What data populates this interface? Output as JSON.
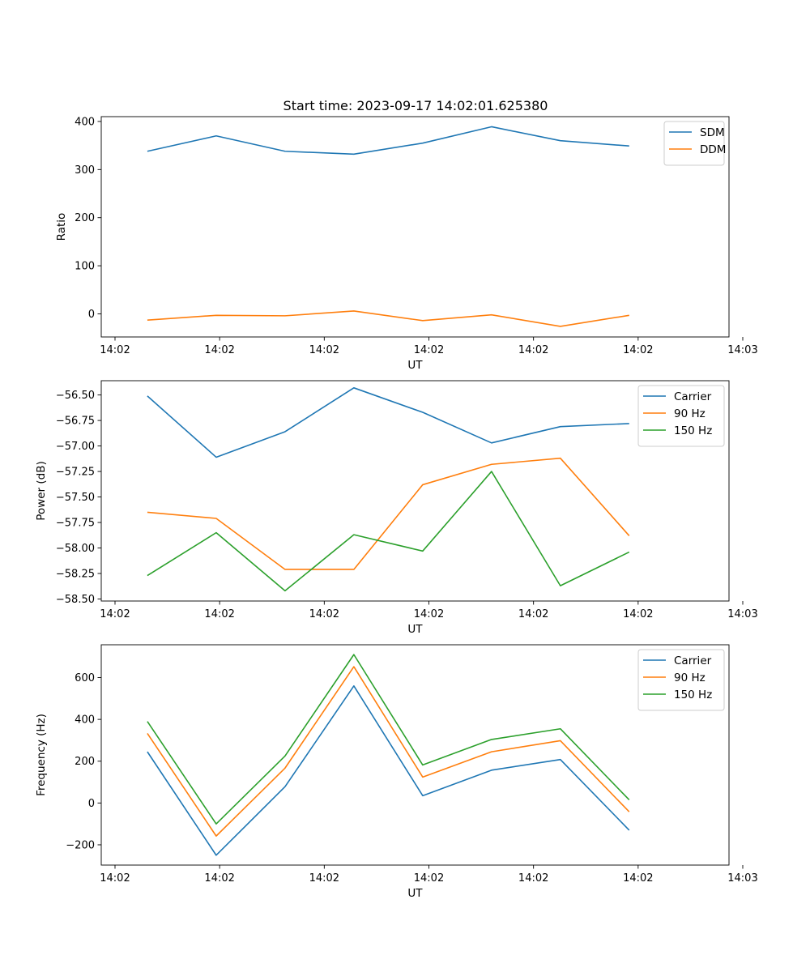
{
  "figure_title": "Start time: 2023-09-17 14:02:01.625380",
  "chart_data": [
    {
      "type": "line",
      "title": "Start time: 2023-09-17 14:02:01.625380",
      "xlabel": "UT",
      "ylabel": "Ratio",
      "x": [
        1,
        2,
        3,
        4,
        5,
        6,
        7,
        8
      ],
      "xlim": [
        0.33,
        9.45
      ],
      "ylim": [
        -48,
        410
      ],
      "x_ticks": [
        0.53,
        2.05,
        3.57,
        5.09,
        6.61,
        8.13,
        9.65
      ],
      "x_tick_labels": [
        "14:02",
        "14:02",
        "14:02",
        "14:02",
        "14:02",
        "14:02",
        "14:03"
      ],
      "y_ticks": [
        0,
        100,
        200,
        300,
        400
      ],
      "y_tick_labels": [
        "0",
        "100",
        "200",
        "300",
        "400"
      ],
      "legend_position": "top-right",
      "series": [
        {
          "name": "SDM",
          "color": "#1f77b4",
          "values": [
            338,
            370,
            338,
            332,
            355,
            389,
            360,
            349
          ]
        },
        {
          "name": "DDM",
          "color": "#ff7f0e",
          "values": [
            -13,
            -3,
            -4,
            6,
            -14,
            -2,
            -26,
            -3
          ]
        }
      ]
    },
    {
      "type": "line",
      "xlabel": "UT",
      "ylabel": "Power (dB)",
      "x": [
        1,
        2,
        3,
        4,
        5,
        6,
        7,
        8
      ],
      "xlim": [
        0.33,
        9.45
      ],
      "ylim": [
        -58.52,
        -56.36
      ],
      "x_ticks": [
        0.53,
        2.05,
        3.57,
        5.09,
        6.61,
        8.13,
        9.65
      ],
      "x_tick_labels": [
        "14:02",
        "14:02",
        "14:02",
        "14:02",
        "14:02",
        "14:02",
        "14:03"
      ],
      "y_ticks": [
        -58.5,
        -58.25,
        -58.0,
        -57.75,
        -57.5,
        -57.25,
        -57.0,
        -56.75,
        -56.5
      ],
      "y_tick_labels": [
        "−58.50",
        "−58.25",
        "−58.00",
        "−57.75",
        "−57.50",
        "−57.25",
        "−57.00",
        "−56.75",
        "−56.50"
      ],
      "legend_position": "top-right",
      "series": [
        {
          "name": "Carrier",
          "color": "#1f77b4",
          "values": [
            -56.51,
            -57.11,
            -56.86,
            -56.43,
            -56.67,
            -56.97,
            -56.81,
            -56.78
          ]
        },
        {
          "name": "90 Hz",
          "color": "#ff7f0e",
          "values": [
            -57.65,
            -57.71,
            -58.21,
            -58.21,
            -57.38,
            -57.18,
            -57.12,
            -57.88
          ]
        },
        {
          "name": "150 Hz",
          "color": "#2ca02c",
          "values": [
            -58.27,
            -57.85,
            -58.42,
            -57.87,
            -58.03,
            -57.25,
            -58.37,
            -58.04
          ]
        }
      ]
    },
    {
      "type": "line",
      "xlabel": "UT",
      "ylabel": "Frequency (Hz)",
      "x": [
        1,
        2,
        3,
        4,
        5,
        6,
        7,
        8
      ],
      "xlim": [
        0.33,
        9.45
      ],
      "ylim": [
        -297,
        757
      ],
      "x_ticks": [
        0.53,
        2.05,
        3.57,
        5.09,
        6.61,
        8.13,
        9.65
      ],
      "x_tick_labels": [
        "14:02",
        "14:02",
        "14:02",
        "14:02",
        "14:02",
        "14:02",
        "14:03"
      ],
      "y_ticks": [
        -200,
        0,
        200,
        400,
        600
      ],
      "y_tick_labels": [
        "−200",
        "0",
        "200",
        "400",
        "600"
      ],
      "legend_position": "top-right",
      "series": [
        {
          "name": "Carrier",
          "color": "#1f77b4",
          "values": [
            245,
            -250,
            78,
            560,
            35,
            157,
            208,
            -130
          ]
        },
        {
          "name": "90 Hz",
          "color": "#ff7f0e",
          "values": [
            333,
            -158,
            167,
            652,
            124,
            245,
            298,
            -42
          ]
        },
        {
          "name": "150 Hz",
          "color": "#2ca02c",
          "values": [
            390,
            -100,
            225,
            710,
            182,
            304,
            355,
            15
          ]
        }
      ]
    }
  ]
}
